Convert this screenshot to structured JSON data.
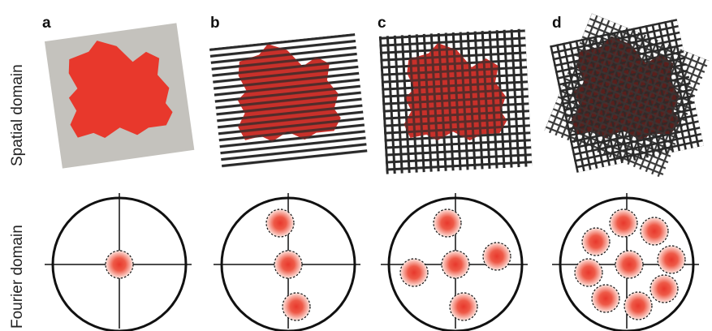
{
  "row_labels": {
    "spatial": "Spatial domain",
    "fourier": "Fourier domain"
  },
  "panels": [
    {
      "letter": "a",
      "fourier_spots": 1
    },
    {
      "letter": "b",
      "fourier_spots": 3
    },
    {
      "letter": "c",
      "fourier_spots": 5
    },
    {
      "letter": "d",
      "fourier_spots": 9
    }
  ],
  "colors": {
    "sample_red": "#e8382c",
    "background_gray": "#c4c2bd",
    "grating_dark": "#2a2a2a",
    "outline": "#111111"
  }
}
